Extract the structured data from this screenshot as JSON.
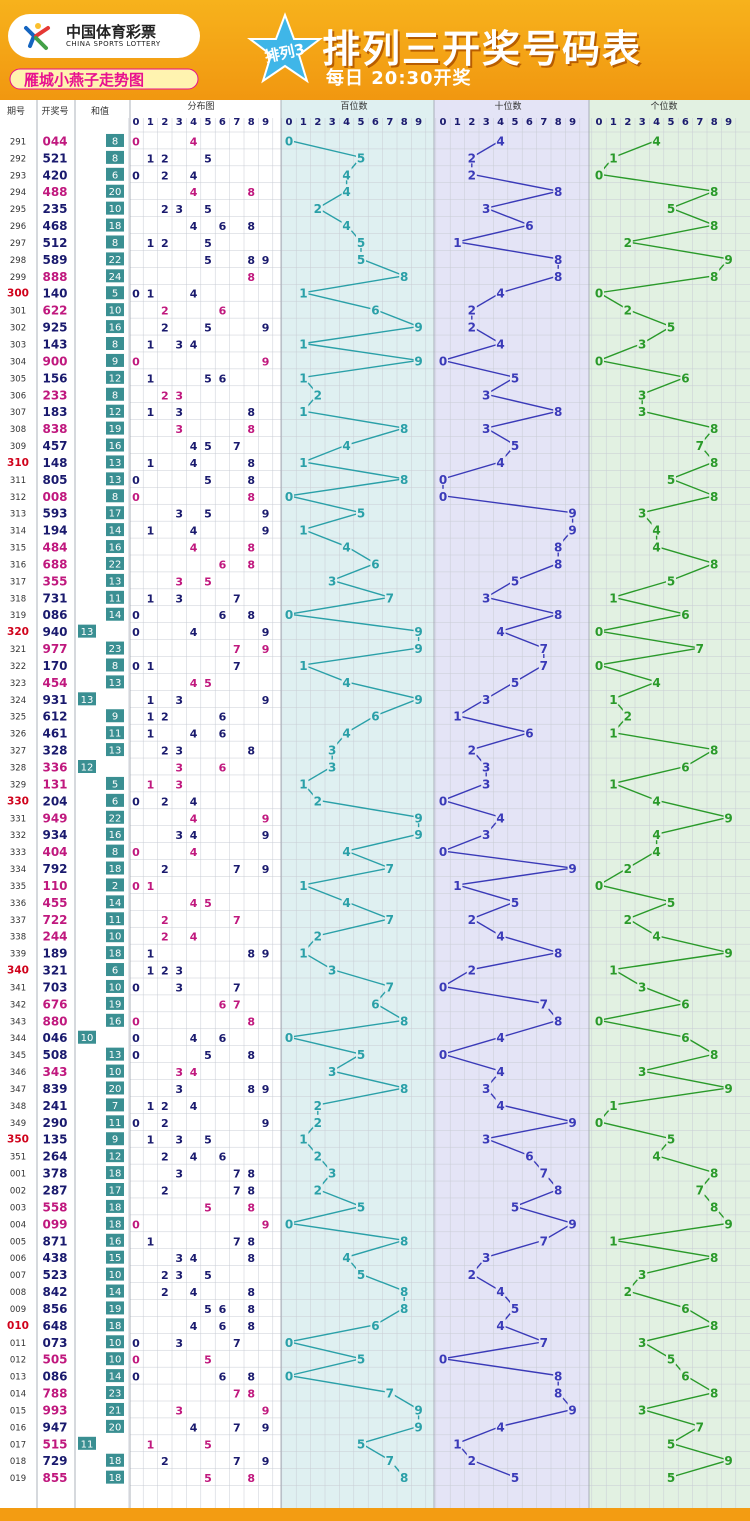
{
  "header": {
    "logo_cn": "中国体育彩票",
    "logo_en": "CHINA SPORTS LOTTERY",
    "tagline": "雁城小燕子走势图",
    "badge": "排列3",
    "title": "排列三开奖号码表",
    "subtitle": "每日  20:30开奖"
  },
  "columns": {
    "issue": "期号",
    "number": "开奖号",
    "sum": "和值",
    "distribution": "分布图",
    "hundreds": "百位数",
    "tens": "十位数",
    "units": "个位数",
    "digits": [
      "0",
      "1",
      "2",
      "3",
      "4",
      "5",
      "6",
      "7",
      "8",
      "9"
    ]
  },
  "colors": {
    "header_orange": "#f39c12",
    "number_navy": "#1a1a6e",
    "number_magenta": "#c0187e",
    "sum_badge": "#3a8f92",
    "issue_red": "#d0021b",
    "hundreds_line": "#2aa0a8",
    "tens_line": "#3a3ab8",
    "units_line": "#2a9a2a"
  },
  "chart_data": {
    "type": "line",
    "title": "排列三开奖号码表",
    "series": [
      {
        "name": "百位数",
        "color": "#2aa0a8"
      },
      {
        "name": "十位数",
        "color": "#3a3ab8"
      },
      {
        "name": "个位数",
        "color": "#2a9a2a"
      }
    ],
    "rows": [
      [
        "291",
        "044"
      ],
      [
        "292",
        "521"
      ],
      [
        "293",
        "420"
      ],
      [
        "294",
        "488"
      ],
      [
        "295",
        "235"
      ],
      [
        "296",
        "468"
      ],
      [
        "297",
        "512"
      ],
      [
        "298",
        "589"
      ],
      [
        "299",
        "888"
      ],
      [
        "300",
        "140"
      ],
      [
        "301",
        "622"
      ],
      [
        "302",
        "925"
      ],
      [
        "303",
        "143"
      ],
      [
        "304",
        "900"
      ],
      [
        "305",
        "156"
      ],
      [
        "306",
        "233"
      ],
      [
        "307",
        "183"
      ],
      [
        "308",
        "838"
      ],
      [
        "309",
        "457"
      ],
      [
        "310",
        "148"
      ],
      [
        "311",
        "805"
      ],
      [
        "312",
        "008"
      ],
      [
        "313",
        "593"
      ],
      [
        "314",
        "194"
      ],
      [
        "315",
        "484"
      ],
      [
        "316",
        "688"
      ],
      [
        "317",
        "355"
      ],
      [
        "318",
        "731"
      ],
      [
        "319",
        "086"
      ],
      [
        "320",
        "940"
      ],
      [
        "321",
        "977"
      ],
      [
        "322",
        "170"
      ],
      [
        "323",
        "454"
      ],
      [
        "324",
        "931"
      ],
      [
        "325",
        "612"
      ],
      [
        "326",
        "461"
      ],
      [
        "327",
        "328"
      ],
      [
        "328",
        "336"
      ],
      [
        "329",
        "131"
      ],
      [
        "330",
        "204"
      ],
      [
        "331",
        "949"
      ],
      [
        "332",
        "934"
      ],
      [
        "333",
        "404"
      ],
      [
        "334",
        "792"
      ],
      [
        "335",
        "110"
      ],
      [
        "336",
        "455"
      ],
      [
        "337",
        "722"
      ],
      [
        "338",
        "244"
      ],
      [
        "339",
        "189"
      ],
      [
        "340",
        "321"
      ],
      [
        "341",
        "703"
      ],
      [
        "342",
        "676"
      ],
      [
        "343",
        "880"
      ],
      [
        "344",
        "046"
      ],
      [
        "345",
        "508"
      ],
      [
        "346",
        "343"
      ],
      [
        "347",
        "839"
      ],
      [
        "348",
        "241"
      ],
      [
        "349",
        "290"
      ],
      [
        "350",
        "135"
      ],
      [
        "351",
        "264"
      ],
      [
        "001",
        "378"
      ],
      [
        "002",
        "287"
      ],
      [
        "003",
        "558"
      ],
      [
        "004",
        "099"
      ],
      [
        "005",
        "871"
      ],
      [
        "006",
        "438"
      ],
      [
        "007",
        "523"
      ],
      [
        "008",
        "842"
      ],
      [
        "009",
        "856"
      ],
      [
        "010",
        "648"
      ],
      [
        "011",
        "073"
      ],
      [
        "012",
        "505"
      ],
      [
        "013",
        "086"
      ],
      [
        "014",
        "788"
      ],
      [
        "015",
        "993"
      ],
      [
        "016",
        "947"
      ],
      [
        "017",
        "515"
      ],
      [
        "018",
        "729"
      ],
      [
        "019",
        "855"
      ]
    ]
  }
}
